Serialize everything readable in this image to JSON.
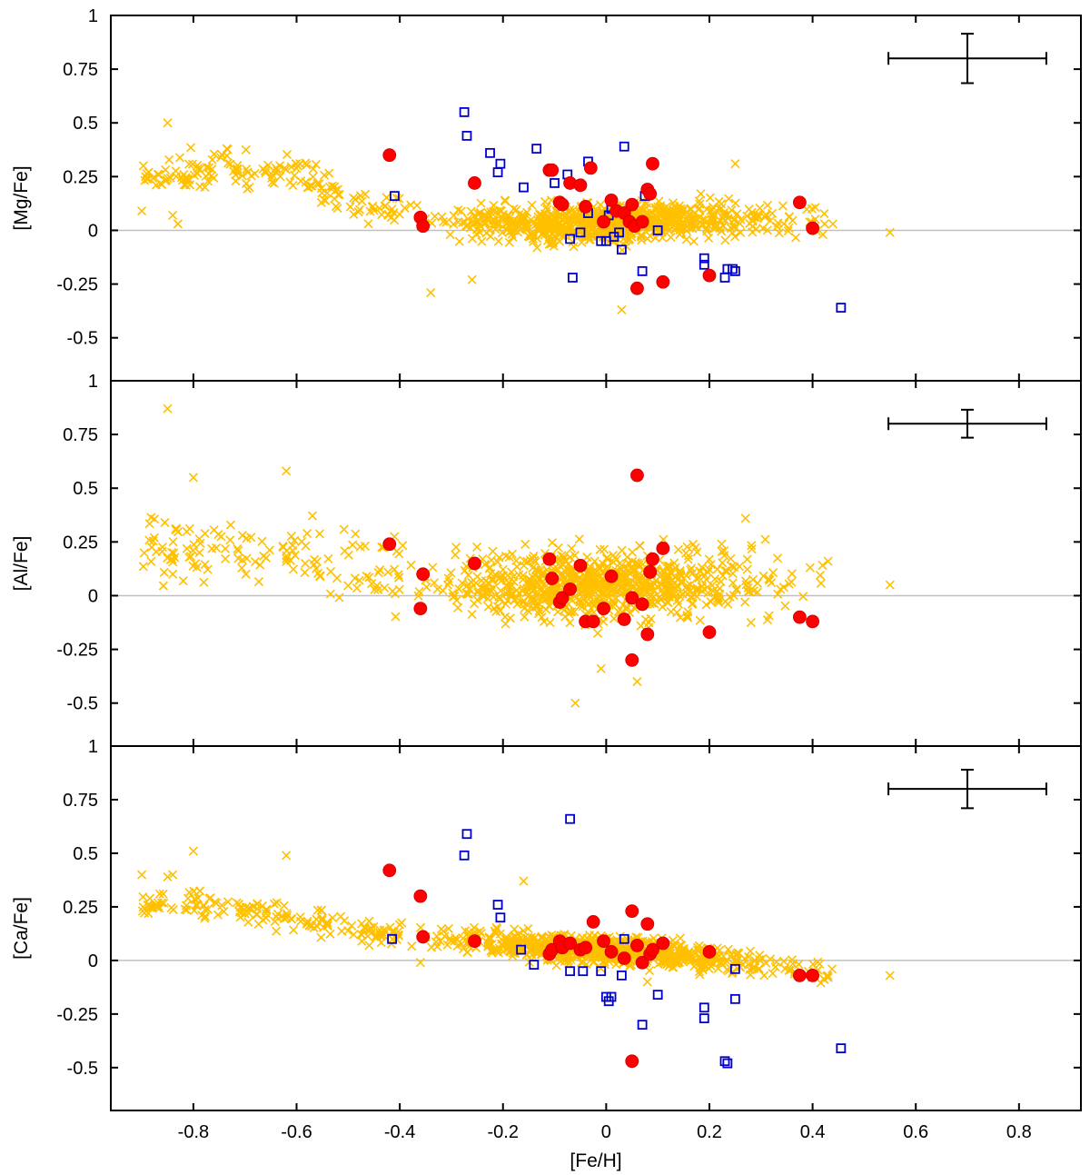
{
  "chart_data": {
    "type": "scatter",
    "xlabel": "[Fe/H]",
    "xlim": [
      -0.96,
      0.92
    ],
    "x_ticks": [
      -0.8,
      -0.6,
      -0.4,
      -0.2,
      0,
      0.2,
      0.4,
      0.6,
      0.8
    ],
    "x_tick_labels": [
      "-0.8",
      "-0.6",
      "-0.4",
      "-0.2",
      "0",
      "0.2",
      "0.4",
      "0.6",
      "0.8"
    ],
    "colors": {
      "cross": "#ffc000",
      "circle": "#ff0000",
      "circle_edge": "#cc0000",
      "square": "#0000cc",
      "reference_line": "#c0c0c0",
      "axis": "#000000"
    },
    "panels": [
      {
        "ylabel": "[Mg/Fe]",
        "ylim": [
          -0.7,
          1.0
        ],
        "y_ticks": [
          -0.5,
          -0.25,
          0,
          0.25,
          0.5,
          0.75,
          1
        ],
        "y_tick_labels": [
          "-0.5",
          "-0.25",
          "0",
          "0.25",
          "0.5",
          "0.75",
          "1"
        ],
        "error_bar": {
          "x": 0.7,
          "y": 0.8,
          "xerr": 0.153,
          "yerr": 0.115
        },
        "red_circles": [
          [
            -0.42,
            0.35
          ],
          [
            -0.36,
            0.06
          ],
          [
            -0.355,
            0.02
          ],
          [
            -0.255,
            0.22
          ],
          [
            -0.11,
            0.28
          ],
          [
            -0.105,
            0.28
          ],
          [
            -0.09,
            0.13
          ],
          [
            -0.085,
            0.12
          ],
          [
            -0.07,
            0.22
          ],
          [
            -0.05,
            0.21
          ],
          [
            -0.04,
            0.11
          ],
          [
            -0.03,
            0.29
          ],
          [
            -0.005,
            0.04
          ],
          [
            0.01,
            0.14
          ],
          [
            0.02,
            0.09
          ],
          [
            0.035,
            0.08
          ],
          [
            0.045,
            0.04
          ],
          [
            0.05,
            0.12
          ],
          [
            0.055,
            0.02
          ],
          [
            0.06,
            -0.27
          ],
          [
            0.07,
            0.04
          ],
          [
            0.08,
            0.19
          ],
          [
            0.085,
            0.17
          ],
          [
            0.09,
            0.31
          ],
          [
            0.11,
            -0.24
          ],
          [
            0.2,
            -0.21
          ],
          [
            0.375,
            0.13
          ],
          [
            0.4,
            0.01
          ]
        ],
        "blue_squares": [
          [
            -0.41,
            0.16
          ],
          [
            -0.275,
            0.55
          ],
          [
            -0.27,
            0.44
          ],
          [
            -0.225,
            0.36
          ],
          [
            -0.21,
            0.27
          ],
          [
            -0.205,
            0.31
          ],
          [
            -0.16,
            0.2
          ],
          [
            -0.135,
            0.38
          ],
          [
            -0.1,
            0.22
          ],
          [
            -0.075,
            0.26
          ],
          [
            -0.07,
            -0.04
          ],
          [
            -0.065,
            -0.22
          ],
          [
            -0.05,
            -0.01
          ],
          [
            -0.035,
            0.32
          ],
          [
            -0.035,
            0.08
          ],
          [
            -0.01,
            -0.05
          ],
          [
            0.0,
            -0.05
          ],
          [
            0.005,
            0.07
          ],
          [
            0.01,
            0.1
          ],
          [
            0.015,
            -0.03
          ],
          [
            0.025,
            -0.01
          ],
          [
            0.03,
            -0.09
          ],
          [
            0.035,
            0.39
          ],
          [
            0.07,
            -0.19
          ],
          [
            0.075,
            0.16
          ],
          [
            0.1,
            0.0
          ],
          [
            0.19,
            -0.13
          ],
          [
            0.19,
            -0.16
          ],
          [
            0.23,
            -0.22
          ],
          [
            0.235,
            -0.18
          ],
          [
            0.245,
            -0.18
          ],
          [
            0.25,
            -0.19
          ],
          [
            0.455,
            -0.36
          ]
        ],
        "crosses": {
          "seed": 11,
          "n": 950,
          "trend": {
            "x": [
              -0.9,
              -0.75,
              -0.6,
              -0.45,
              -0.3,
              -0.15,
              0,
              0.15,
              0.3,
              0.45
            ],
            "y": [
              0.24,
              0.3,
              0.25,
              0.1,
              0.04,
              0.03,
              0.03,
              0.05,
              0.06,
              0.05
            ]
          },
          "sigma": 0.06,
          "extra": [
            [
              -0.85,
              0.5
            ],
            [
              -0.34,
              -0.29
            ],
            [
              -0.26,
              -0.23
            ],
            [
              0.03,
              -0.37
            ],
            [
              0.25,
              0.31
            ],
            [
              0.55,
              -0.01
            ],
            [
              -0.9,
              0.09
            ],
            [
              -0.84,
              0.07
            ],
            [
              -0.83,
              0.03
            ],
            [
              0.4,
              0.03
            ]
          ]
        }
      },
      {
        "ylabel": "[Al/Fe]",
        "ylim": [
          -0.7,
          1.0
        ],
        "y_ticks": [
          -0.5,
          -0.25,
          0,
          0.25,
          0.5,
          0.75,
          1
        ],
        "y_tick_labels": [
          "-0.5",
          "-0.25",
          "0",
          "0.25",
          "0.5",
          "0.75",
          "1"
        ],
        "error_bar": {
          "x": 0.7,
          "y": 0.8,
          "xerr": 0.153,
          "yerr": 0.065
        },
        "red_circles": [
          [
            -0.42,
            0.24
          ],
          [
            -0.36,
            -0.06
          ],
          [
            -0.355,
            0.1
          ],
          [
            -0.255,
            0.15
          ],
          [
            -0.11,
            0.17
          ],
          [
            -0.105,
            0.08
          ],
          [
            -0.09,
            -0.03
          ],
          [
            -0.085,
            -0.01
          ],
          [
            -0.07,
            0.03
          ],
          [
            -0.05,
            0.14
          ],
          [
            -0.04,
            -0.12
          ],
          [
            -0.025,
            -0.12
          ],
          [
            -0.005,
            -0.06
          ],
          [
            0.01,
            0.09
          ],
          [
            0.035,
            -0.11
          ],
          [
            0.05,
            -0.01
          ],
          [
            0.05,
            -0.3
          ],
          [
            0.06,
            0.56
          ],
          [
            0.07,
            -0.04
          ],
          [
            0.08,
            -0.18
          ],
          [
            0.085,
            0.11
          ],
          [
            0.09,
            0.17
          ],
          [
            0.11,
            0.22
          ],
          [
            0.2,
            -0.17
          ],
          [
            0.375,
            -0.1
          ],
          [
            0.4,
            -0.12
          ]
        ],
        "blue_squares": [],
        "crosses": {
          "seed": 23,
          "n": 950,
          "trend": {
            "x": [
              -0.9,
              -0.75,
              -0.6,
              -0.45,
              -0.3,
              -0.15,
              0,
              0.15,
              0.3,
              0.45
            ],
            "y": [
              0.2,
              0.22,
              0.2,
              0.12,
              0.07,
              0.05,
              0.05,
              0.06,
              0.07,
              0.08
            ]
          },
          "sigma": 0.11,
          "extra": [
            [
              -0.85,
              0.87
            ],
            [
              -0.84,
              0.1
            ],
            [
              -0.62,
              0.58
            ],
            [
              -0.06,
              -0.5
            ],
            [
              -0.01,
              -0.34
            ],
            [
              0.06,
              -0.4
            ],
            [
              0.55,
              0.05
            ],
            [
              0.27,
              0.36
            ],
            [
              0.43,
              0.16
            ],
            [
              -0.8,
              0.55
            ]
          ]
        }
      },
      {
        "ylabel": "[Ca/Fe]",
        "ylim": [
          -0.7,
          1.0
        ],
        "y_ticks": [
          -0.5,
          -0.25,
          0,
          0.25,
          0.5,
          0.75,
          1
        ],
        "y_tick_labels": [
          "-0.5",
          "-0.25",
          "0",
          "0.25",
          "0.5",
          "0.75",
          "1"
        ],
        "error_bar": {
          "x": 0.7,
          "y": 0.8,
          "xerr": 0.153,
          "yerr": 0.09
        },
        "red_circles": [
          [
            -0.42,
            0.42
          ],
          [
            -0.36,
            0.3
          ],
          [
            -0.355,
            0.11
          ],
          [
            -0.255,
            0.09
          ],
          [
            -0.11,
            0.03
          ],
          [
            -0.105,
            0.05
          ],
          [
            -0.09,
            0.09
          ],
          [
            -0.085,
            0.06
          ],
          [
            -0.07,
            0.08
          ],
          [
            -0.05,
            0.05
          ],
          [
            -0.04,
            0.06
          ],
          [
            -0.025,
            0.18
          ],
          [
            -0.005,
            0.09
          ],
          [
            0.01,
            0.04
          ],
          [
            0.035,
            0.01
          ],
          [
            0.05,
            0.23
          ],
          [
            0.05,
            -0.47
          ],
          [
            0.06,
            0.07
          ],
          [
            0.07,
            -0.01
          ],
          [
            0.08,
            0.17
          ],
          [
            0.085,
            0.03
          ],
          [
            0.09,
            0.05
          ],
          [
            0.11,
            0.08
          ],
          [
            0.2,
            0.04
          ],
          [
            0.375,
            -0.07
          ],
          [
            0.4,
            -0.07
          ]
        ],
        "blue_squares": [
          [
            -0.415,
            0.1
          ],
          [
            -0.275,
            0.49
          ],
          [
            -0.27,
            0.59
          ],
          [
            -0.21,
            0.26
          ],
          [
            -0.205,
            0.2
          ],
          [
            -0.165,
            0.05
          ],
          [
            -0.14,
            -0.02
          ],
          [
            -0.07,
            -0.05
          ],
          [
            -0.07,
            0.66
          ],
          [
            -0.045,
            -0.05
          ],
          [
            -0.01,
            -0.05
          ],
          [
            0.0,
            -0.17
          ],
          [
            0.005,
            -0.19
          ],
          [
            0.01,
            -0.17
          ],
          [
            0.03,
            -0.07
          ],
          [
            0.035,
            0.1
          ],
          [
            0.07,
            -0.3
          ],
          [
            0.1,
            -0.16
          ],
          [
            0.19,
            -0.22
          ],
          [
            0.19,
            -0.27
          ],
          [
            0.23,
            -0.47
          ],
          [
            0.235,
            -0.48
          ],
          [
            0.25,
            -0.18
          ],
          [
            0.25,
            -0.04
          ],
          [
            0.455,
            -0.41
          ]
        ],
        "crosses": {
          "seed": 37,
          "n": 950,
          "trend": {
            "x": [
              -0.9,
              -0.75,
              -0.6,
              -0.45,
              -0.3,
              -0.15,
              0,
              0.15,
              0.3,
              0.45
            ],
            "y": [
              0.27,
              0.25,
              0.2,
              0.12,
              0.1,
              0.07,
              0.05,
              0.02,
              -0.02,
              -0.06
            ]
          },
          "sigma": 0.045,
          "extra": [
            [
              -0.8,
              0.51
            ],
            [
              -0.62,
              0.49
            ],
            [
              -0.9,
              0.4
            ],
            [
              -0.84,
              0.4
            ],
            [
              -0.85,
              0.39
            ],
            [
              0.55,
              -0.07
            ],
            [
              0.43,
              -0.08
            ],
            [
              -0.16,
              0.37
            ],
            [
              -0.36,
              -0.01
            ],
            [
              0.08,
              -0.1
            ]
          ]
        }
      }
    ]
  }
}
